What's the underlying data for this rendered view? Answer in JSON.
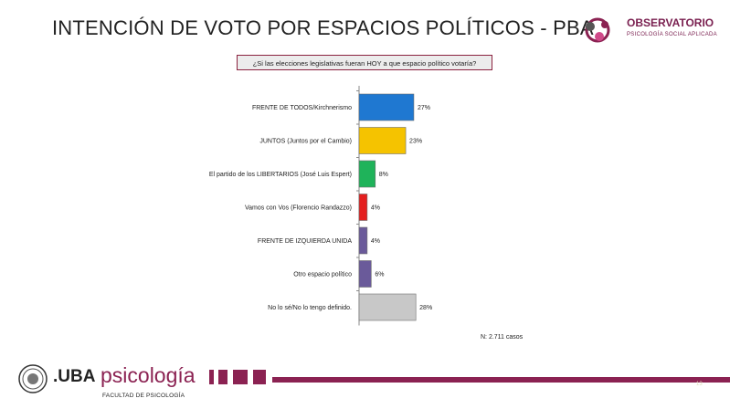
{
  "header": {
    "title": "INTENCIÓN DE VOTO POR ESPACIOS POLÍTICOS - PBA",
    "logo_name": "OBSERVATORIO",
    "logo_sub": "PSICOLOGÍA SOCIAL APLICADA"
  },
  "question": "¿Si las elecciones legislativas fueran HOY a que espacio político votaría?",
  "chart_data": {
    "type": "bar",
    "orientation": "horizontal",
    "categories": [
      "FRENTE DE TODOS/Kirchnerismo",
      "JUNTOS (Juntos por el Cambio)",
      "El partido de los LIBERTARIOS (José Luis Espert)",
      "Vamos con Vos (Florencio Randazzo)",
      "FRENTE DE IZQUIERDA UNIDA",
      "Otro espacio político",
      "No lo sé/No lo tengo definido."
    ],
    "values": [
      27,
      23,
      8,
      4,
      4,
      6,
      28
    ],
    "value_labels": [
      "27%",
      "23%",
      "8%",
      "4%",
      "4%",
      "6%",
      "28%"
    ],
    "colors": [
      "#1f78d1",
      "#f5c300",
      "#1fb35a",
      "#e41f1f",
      "#6a5a9a",
      "#6a5a9a",
      "#c8c8c8"
    ],
    "xlim": [
      0,
      100
    ],
    "legend": "none",
    "grid": false
  },
  "note": "N: 2.711 casos",
  "footer": {
    "uba": ".UBA",
    "psicologia": "psicología",
    "facultad": "FACULTAD DE PSICOLOGÍA",
    "page_number": "13",
    "accent_color": "#8b2252"
  }
}
